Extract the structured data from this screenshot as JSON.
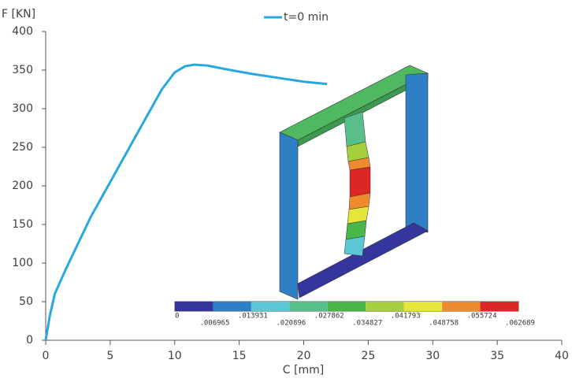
{
  "chart_data": {
    "type": "line",
    "y_label": "F [KN]",
    "x_label": "C [mm]",
    "series": [
      {
        "name": "t=0 min",
        "color": "#29a8e0",
        "x": [
          0,
          0.3,
          0.7,
          1.5,
          2.5,
          3.5,
          5,
          6.5,
          8,
          9,
          10,
          10.8,
          11.5,
          12.5,
          14,
          16,
          18,
          20,
          21.8
        ],
        "values": [
          0,
          30,
          60,
          90,
          125,
          160,
          205,
          250,
          295,
          325,
          347,
          355,
          357,
          356,
          351,
          345,
          340,
          335,
          332
        ]
      }
    ],
    "xlim": [
      0,
      40
    ],
    "xticks": [
      0,
      5,
      10,
      15,
      20,
      25,
      30,
      35,
      40
    ],
    "ylim": [
      0,
      400
    ],
    "yticks": [
      0,
      50,
      100,
      150,
      200,
      250,
      300,
      350,
      400
    ],
    "grid": false,
    "legend": "top"
  },
  "inset": {
    "colorbar_labels": [
      "0",
      ".006965",
      ".013931",
      ".020896",
      ".027862",
      ".034827",
      ".041793",
      ".048758",
      ".055724",
      ".062689"
    ],
    "colorbar_colors": [
      "#35359e",
      "#2f7fc6",
      "#5ac6d6",
      "#58be8a",
      "#48b648",
      "#a6cf3c",
      "#e6e63a",
      "#ef8a2e",
      "#dd2626"
    ]
  }
}
